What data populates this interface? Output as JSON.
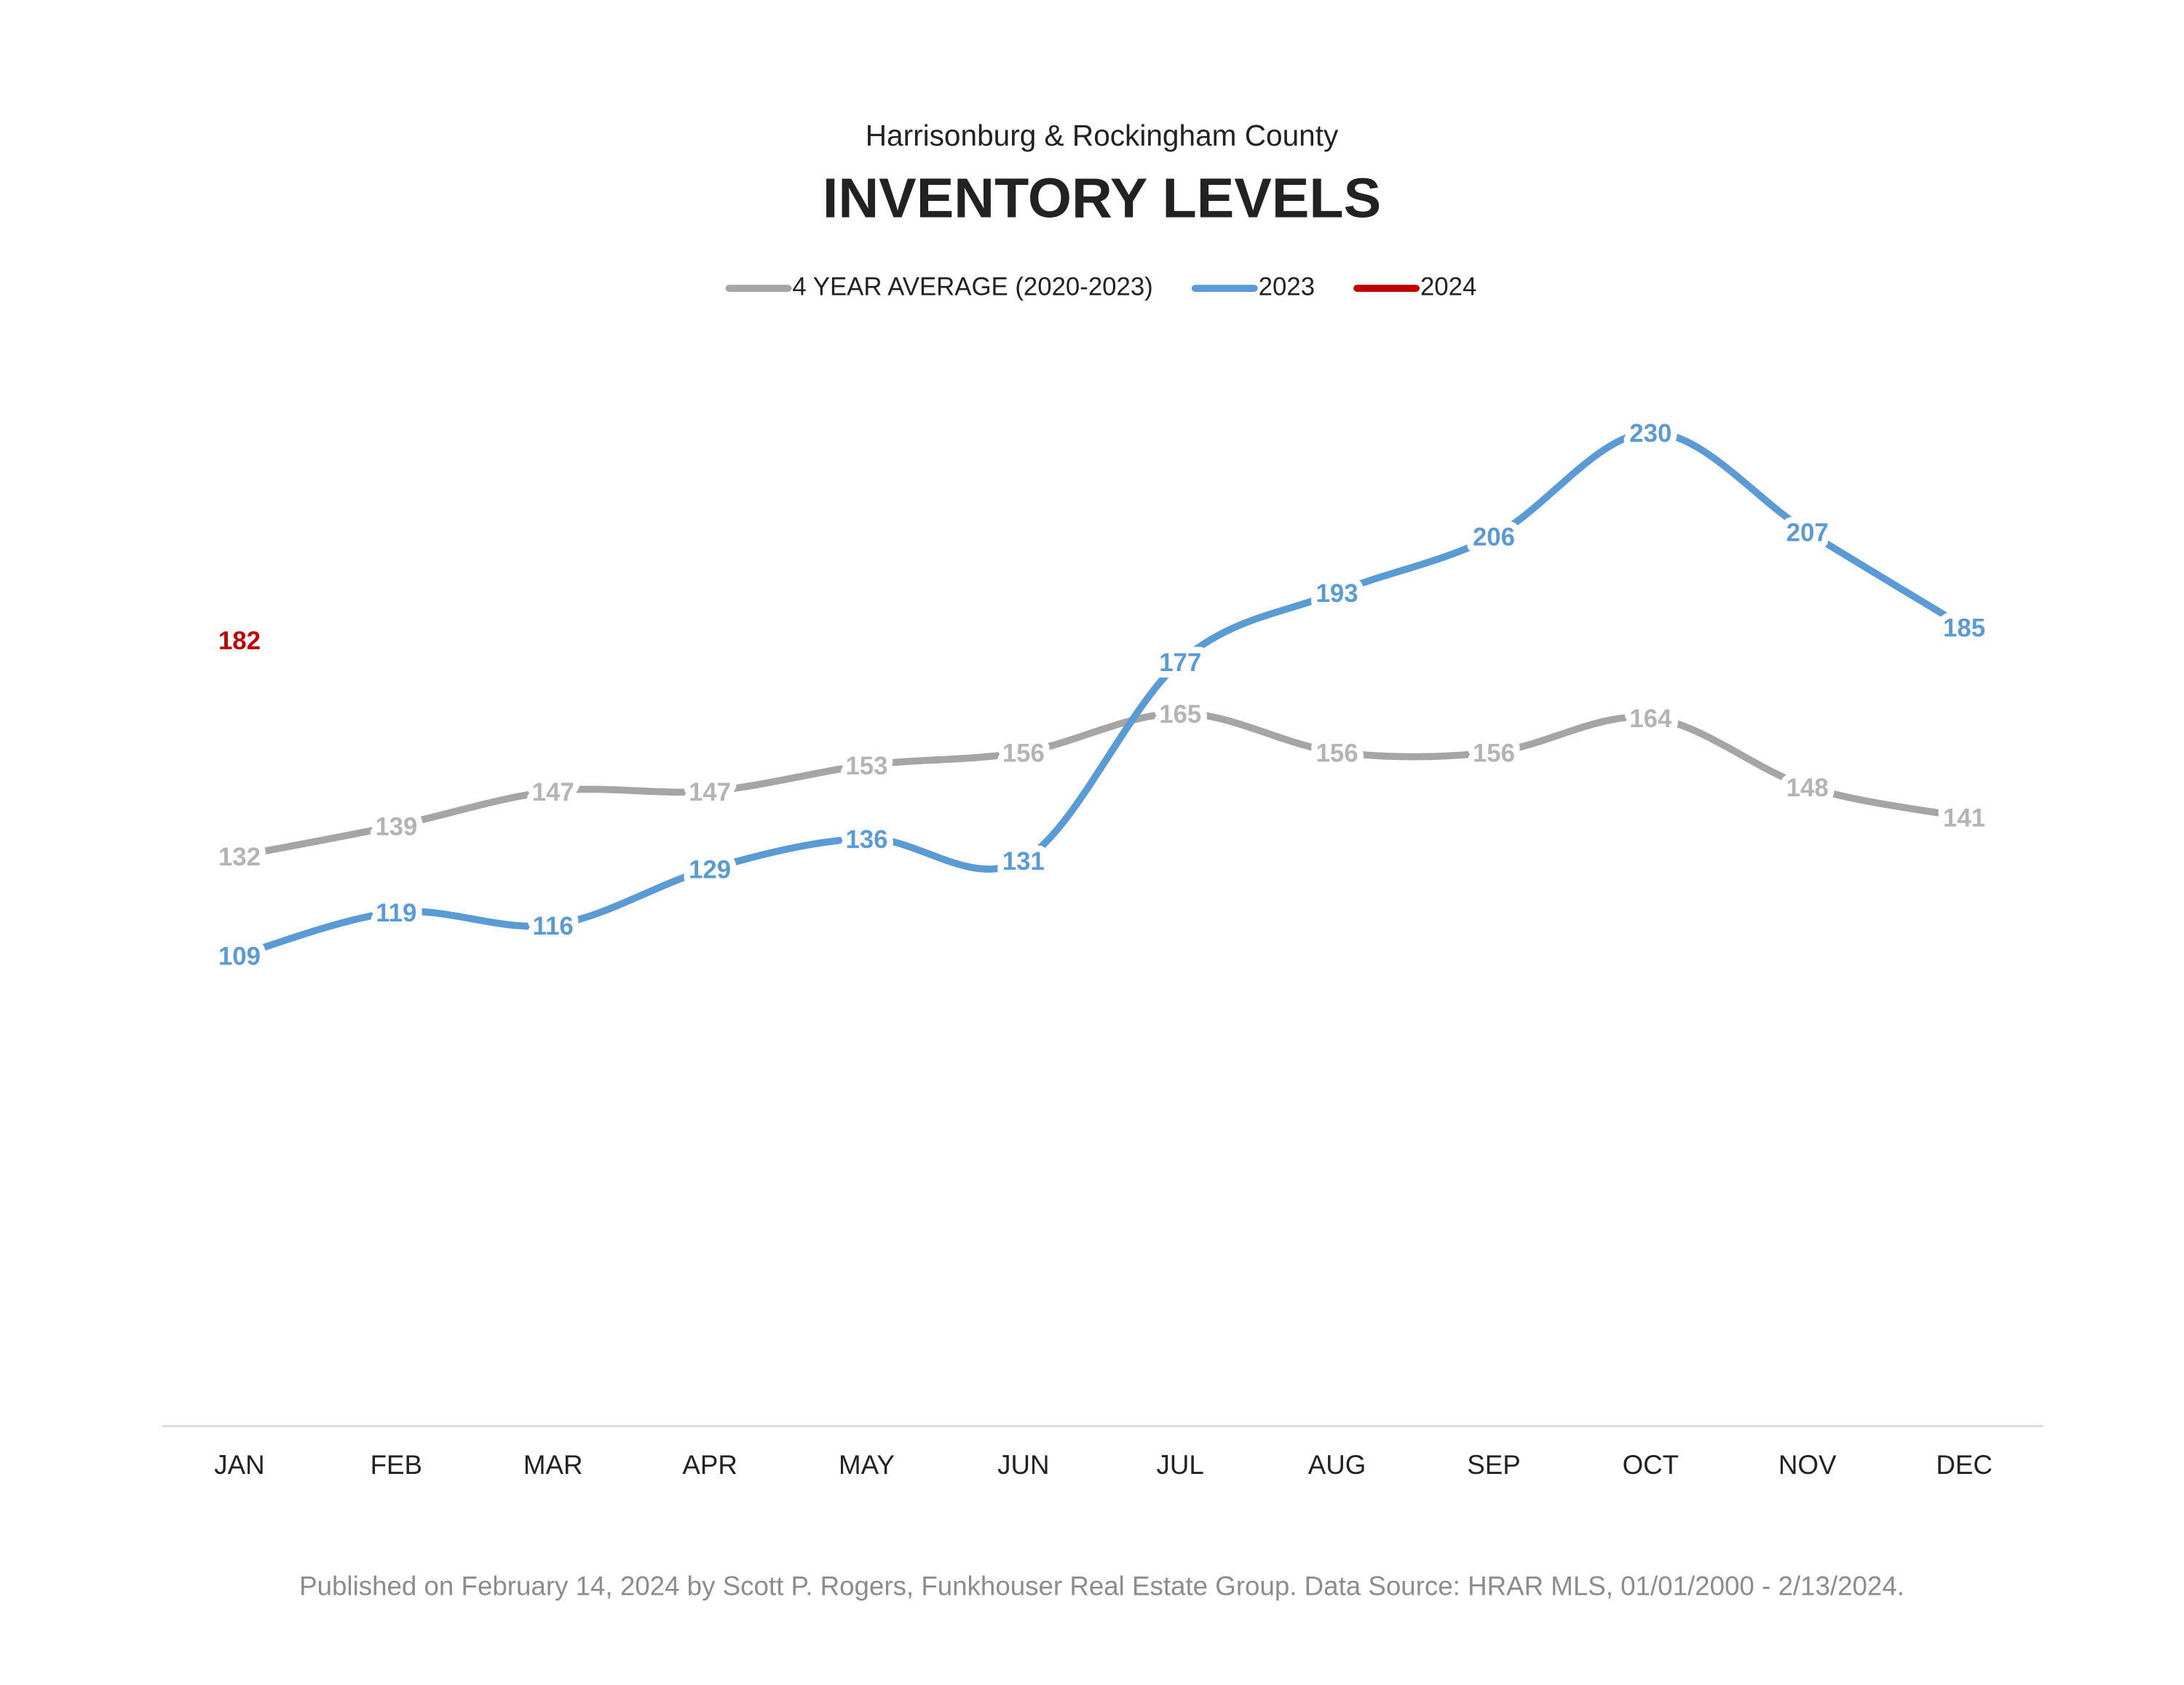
{
  "chart_data": {
    "type": "line",
    "subtitle": "Harrisonburg & Rockingham County",
    "title": "INVENTORY LEVELS",
    "categories": [
      "JAN",
      "FEB",
      "MAR",
      "APR",
      "MAY",
      "JUN",
      "JUL",
      "AUG",
      "SEP",
      "OCT",
      "NOV",
      "DEC"
    ],
    "series": [
      {
        "name": "4 YEAR AVERAGE (2020-2023)",
        "color": "#a5a5a5",
        "label_color": "#b4b4b4",
        "values": [
          132,
          139,
          147,
          147,
          153,
          156,
          165,
          156,
          156,
          164,
          148,
          141
        ]
      },
      {
        "name": "2023",
        "color": "#5b9bd5",
        "label_color": "#5b9bd5",
        "values": [
          109,
          119,
          116,
          129,
          136,
          131,
          177,
          193,
          206,
          230,
          207,
          185
        ]
      },
      {
        "name": "2024",
        "color": "#c00000",
        "label_color": "#c00000",
        "values": [
          182,
          null,
          null,
          null,
          null,
          null,
          null,
          null,
          null,
          null,
          null,
          null
        ]
      }
    ],
    "ylim": [
      0,
      250
    ],
    "legend": "top",
    "footnote": "Published on February 14, 2024 by Scott P. Rogers, Funkhouser Real Estate Group. Data Source: HRAR MLS, 01/01/2000 - 2/13/2024."
  }
}
